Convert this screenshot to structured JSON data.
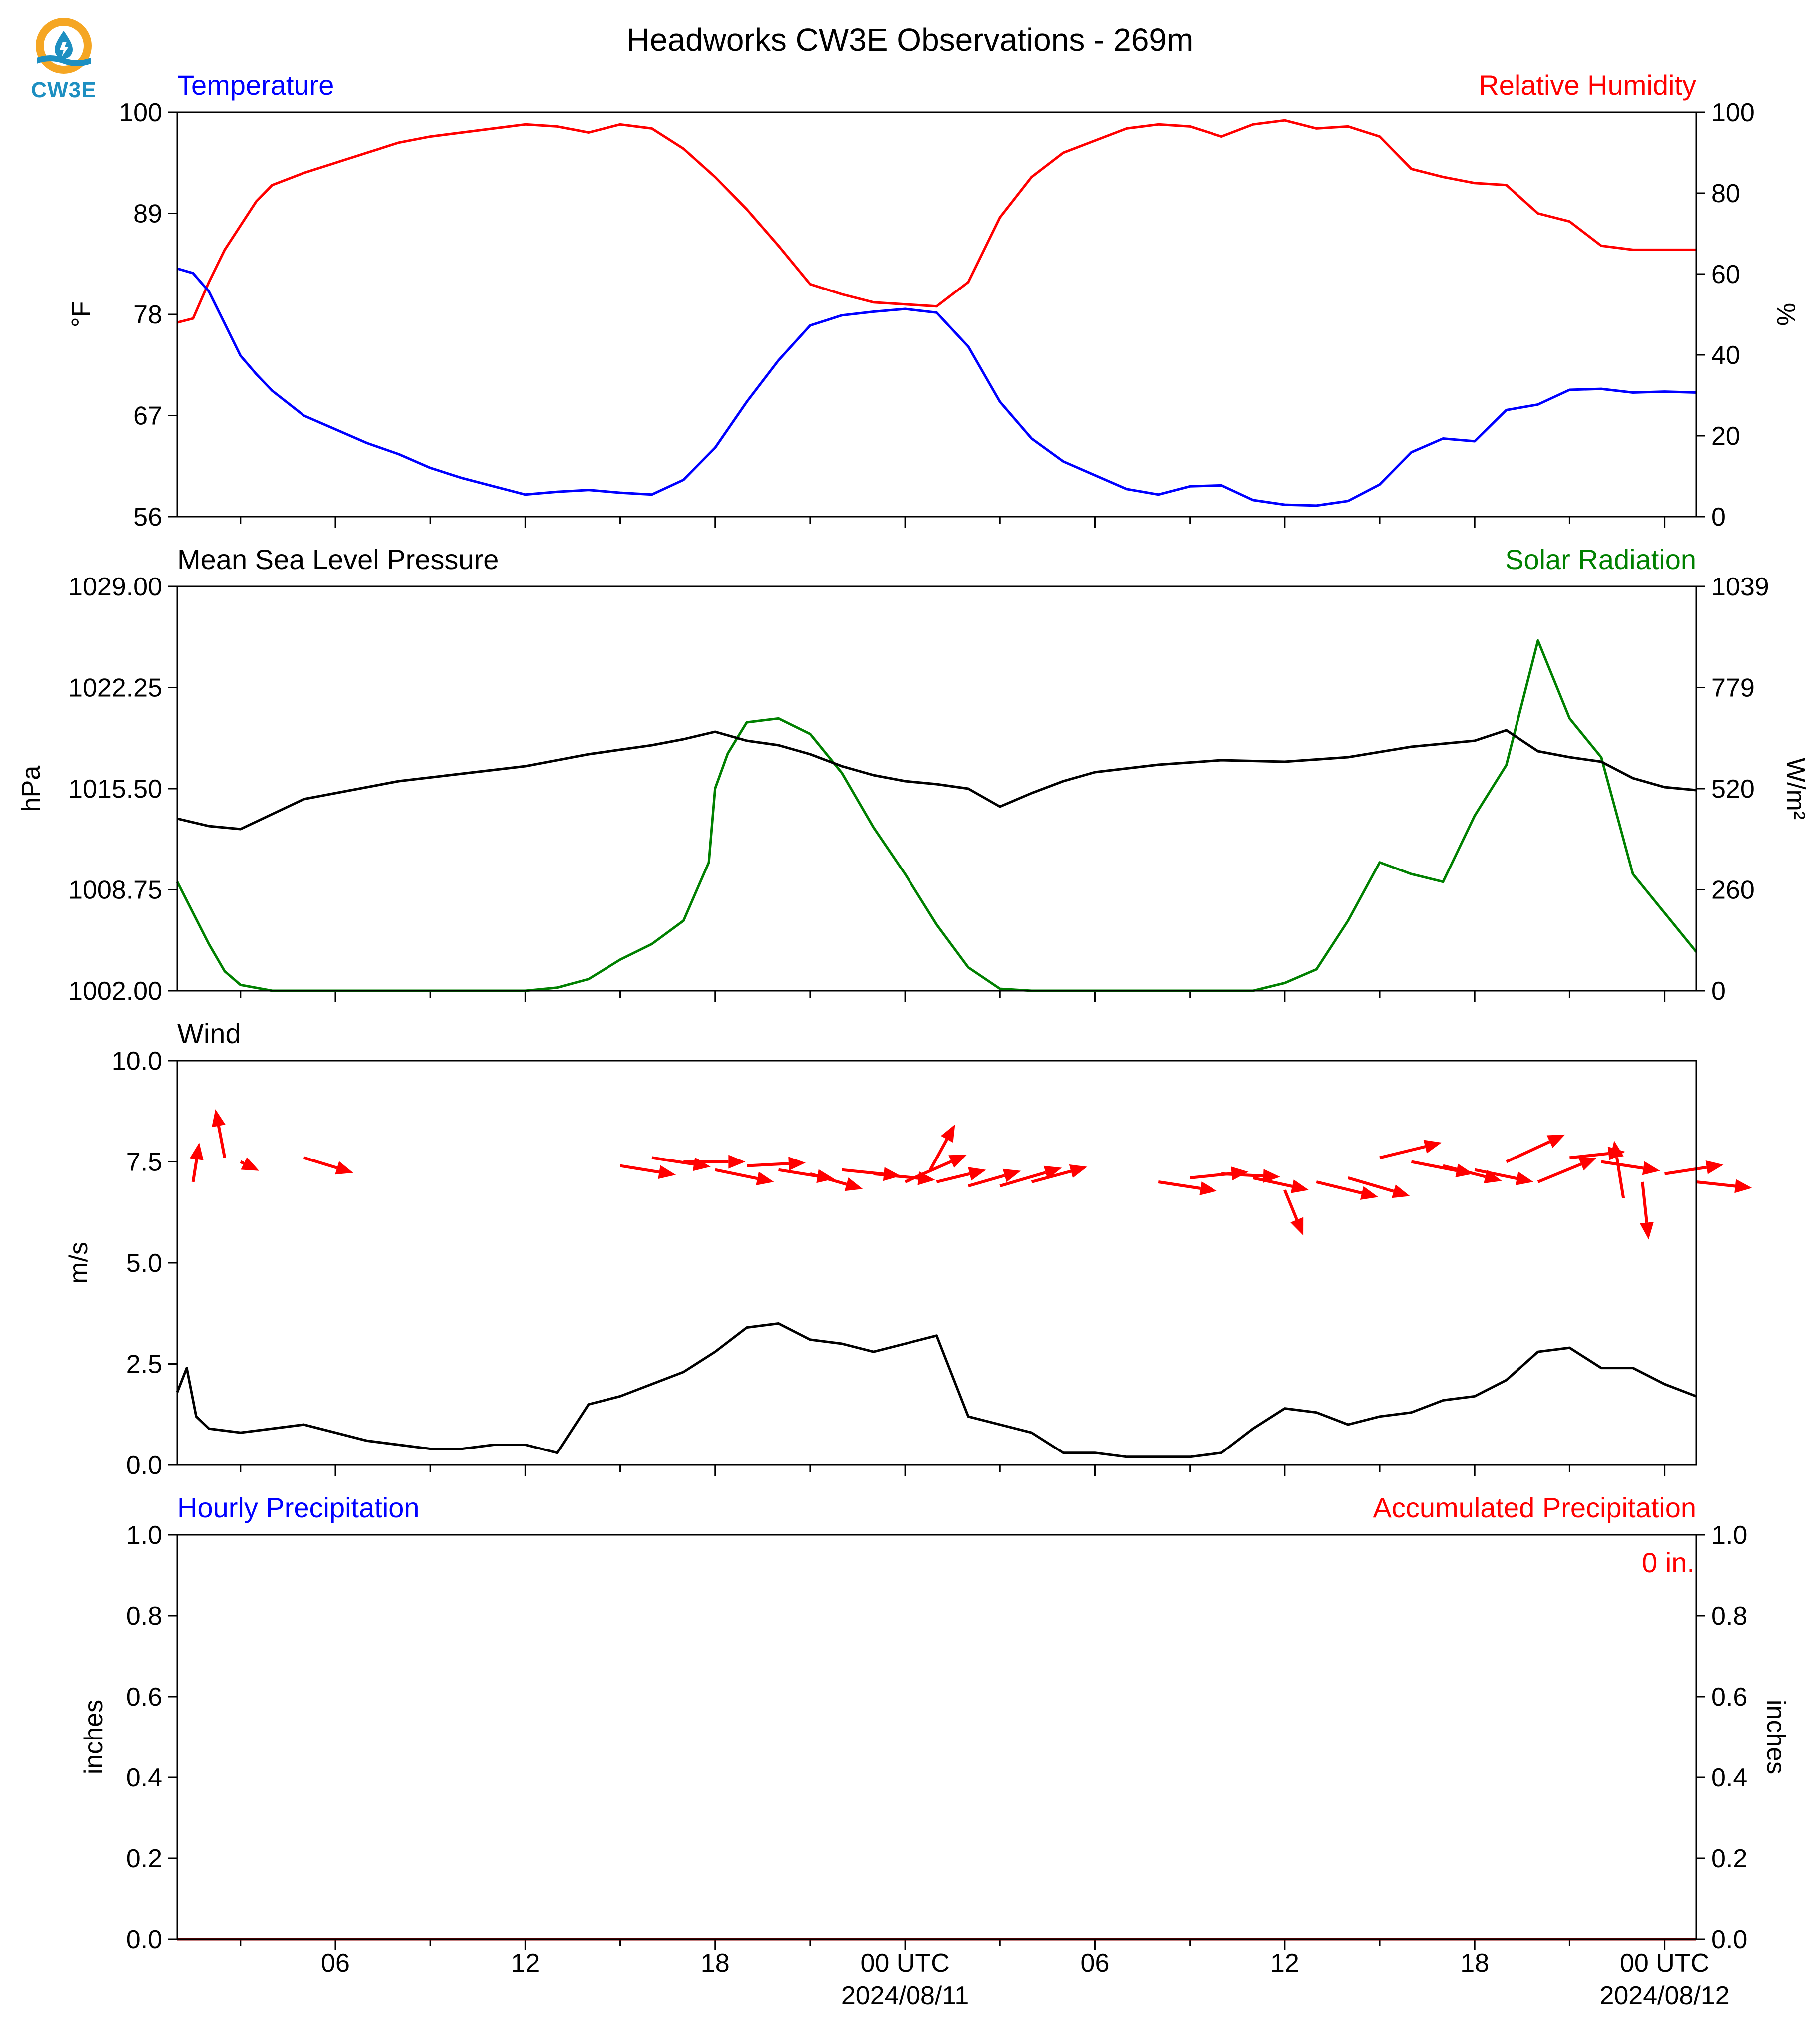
{
  "title": "Headworks CW3E Observations - 269m",
  "logo": {
    "text": "CW3E",
    "icon": "cw3e-water-drop-logo",
    "colors": {
      "ring": "#f5a623",
      "drop": "#1d8fc1"
    }
  },
  "x_axis": {
    "start": "2024-08-10 02:00 UTC",
    "end": "2024-08-12 01:00 UTC",
    "tick_labels": [
      {
        "time": "2024-08-10 06:00",
        "label": "06",
        "sub": ""
      },
      {
        "time": "2024-08-10 12:00",
        "label": "12",
        "sub": ""
      },
      {
        "time": "2024-08-10 18:00",
        "label": "18",
        "sub": ""
      },
      {
        "time": "2024-08-11 00:00",
        "label": "00 UTC",
        "sub": "2024/08/11"
      },
      {
        "time": "2024-08-11 06:00",
        "label": "06",
        "sub": ""
      },
      {
        "time": "2024-08-11 12:00",
        "label": "12",
        "sub": ""
      },
      {
        "time": "2024-08-11 18:00",
        "label": "18",
        "sub": ""
      },
      {
        "time": "2024-08-12 00:00",
        "label": "00 UTC",
        "sub": "2024/08/12"
      }
    ]
  },
  "panels": {
    "temp_rh": {
      "left_title": "Temperature",
      "right_title": "Relative Humidity",
      "left_ylabel": "°F",
      "right_ylabel": "%",
      "left_ticks": [
        "56",
        "67",
        "78",
        "89",
        "100"
      ],
      "right_ticks": [
        "0",
        "20",
        "40",
        "60",
        "80",
        "100"
      ]
    },
    "pressure_solar": {
      "left_title": "Mean Sea Level Pressure",
      "right_title": "Solar Radiation",
      "left_ylabel": "hPa",
      "right_ylabel": "W/m²",
      "left_ticks": [
        "1002.00",
        "1008.75",
        "1015.50",
        "1022.25",
        "1029.00"
      ],
      "right_ticks": [
        "0",
        "260",
        "520",
        "779",
        "1039"
      ]
    },
    "wind": {
      "left_title": "Wind",
      "left_ylabel": "m/s",
      "left_ticks": [
        "0.0",
        "2.5",
        "5.0",
        "7.5",
        "10.0"
      ]
    },
    "precip": {
      "left_title": "Hourly Precipitation",
      "right_title": "Accumulated Precipitation",
      "left_ylabel": "inches",
      "right_ylabel": "inches",
      "left_ticks": [
        "0.0",
        "0.2",
        "0.4",
        "0.6",
        "0.8",
        "1.0"
      ],
      "right_ticks": [
        "0.0",
        "0.2",
        "0.4",
        "0.6",
        "0.8",
        "1.0"
      ],
      "total_label": "0 in."
    }
  },
  "chart_data": [
    {
      "type": "line",
      "title": "Temperature / Relative Humidity",
      "x_unit": "hours since 2024-08-10 00:00 UTC",
      "series": [
        {
          "name": "Temperature",
          "unit": "°F",
          "axis": "left",
          "color": "#0000ff",
          "x": [
            1,
            1.5,
            2,
            2.5,
            3,
            3.5,
            4,
            5,
            6,
            7,
            8,
            9,
            10,
            11,
            12,
            13,
            14,
            15,
            16,
            17,
            18,
            19,
            20,
            21,
            22,
            23,
            24,
            25,
            26,
            27,
            28,
            29,
            30,
            31,
            32,
            33,
            34,
            35,
            36,
            37,
            38,
            39,
            40,
            41,
            42,
            43,
            44,
            45,
            46,
            47,
            48,
            49
          ],
          "y": [
            83,
            82.5,
            80.5,
            77,
            73.5,
            71.5,
            69.7,
            67,
            65.5,
            64,
            62.8,
            61.3,
            60.2,
            59.3,
            58.4,
            58.7,
            58.9,
            58.6,
            58.4,
            60,
            63.5,
            68.5,
            73,
            76.8,
            77.9,
            78.3,
            78.6,
            78.2,
            74.5,
            68.5,
            64.5,
            62,
            60.5,
            59,
            58.4,
            59.3,
            59.4,
            57.8,
            57.3,
            57.2,
            57.7,
            59.5,
            63,
            64.5,
            64.2,
            67.6,
            68.2,
            69.8,
            69.9,
            69.5,
            69.6,
            69.5
          ]
        },
        {
          "name": "Relative Humidity",
          "unit": "%",
          "axis": "right",
          "color": "#ff0000",
          "x": [
            1,
            1.5,
            2,
            2.5,
            3,
            3.5,
            4,
            5,
            6,
            7,
            8,
            9,
            10,
            11,
            12,
            13,
            14,
            15,
            16,
            17,
            18,
            19,
            20,
            21,
            22,
            23,
            24,
            25,
            26,
            27,
            28,
            29,
            30,
            31,
            32,
            33,
            34,
            35,
            36,
            37,
            38,
            39,
            40,
            41,
            42,
            43,
            44,
            45,
            46,
            47,
            48,
            49
          ],
          "y": [
            48,
            49,
            58,
            66,
            72,
            78,
            82,
            85,
            87.5,
            90,
            92.5,
            94,
            95,
            96,
            97,
            96.5,
            95,
            97,
            96,
            91,
            84,
            76,
            67,
            57.5,
            55,
            53,
            52.5,
            52,
            58,
            74,
            84,
            90,
            93,
            96,
            97,
            96.5,
            94,
            97,
            98,
            96,
            96.5,
            94,
            86,
            84,
            82.5,
            82,
            75,
            73,
            67,
            66,
            66,
            66
          ]
        }
      ],
      "xlim": [
        1,
        49
      ],
      "ylim_left": [
        56,
        100
      ],
      "ylim_right": [
        0,
        100
      ]
    },
    {
      "type": "line",
      "title": "Mean Sea Level Pressure / Solar Radiation",
      "x_unit": "hours since 2024-08-10 00:00 UTC",
      "series": [
        {
          "name": "Mean Sea Level Pressure",
          "unit": "hPa",
          "axis": "left",
          "color": "#000000",
          "x": [
            1,
            2,
            3,
            4,
            5,
            6,
            8,
            10,
            12,
            14,
            16,
            17,
            18,
            19,
            20,
            21,
            22,
            23,
            24,
            25,
            26,
            27,
            28,
            29,
            30,
            32,
            34,
            36,
            38,
            40,
            42,
            43,
            44,
            45,
            46,
            47,
            48,
            49
          ],
          "y": [
            1013.5,
            1013,
            1012.8,
            1013.8,
            1014.8,
            1015.2,
            1016,
            1016.5,
            1017,
            1017.8,
            1018.4,
            1018.8,
            1019.3,
            1018.7,
            1018.4,
            1017.8,
            1017,
            1016.4,
            1016,
            1015.8,
            1015.5,
            1014.3,
            1015.2,
            1016,
            1016.6,
            1017.1,
            1017.4,
            1017.3,
            1017.6,
            1018.3,
            1018.7,
            1019.4,
            1018,
            1017.6,
            1017.3,
            1016.2,
            1015.6,
            1015.4
          ]
        },
        {
          "name": "Solar Radiation",
          "unit": "W/m²",
          "axis": "right",
          "color": "#008000",
          "x": [
            1,
            1.5,
            2,
            2.5,
            3,
            4,
            5,
            10,
            12,
            13,
            14,
            15,
            16,
            17,
            17.8,
            18,
            18.4,
            19,
            20,
            21,
            22,
            23,
            24,
            25,
            26,
            27,
            28,
            29,
            31,
            34,
            35,
            36,
            37,
            38,
            39,
            40,
            41,
            42,
            43,
            44,
            45,
            46,
            47,
            48,
            49
          ],
          "y": [
            280,
            200,
            120,
            50,
            15,
            0,
            0,
            0,
            0,
            8,
            30,
            80,
            120,
            180,
            330,
            520,
            610,
            690,
            700,
            660,
            560,
            420,
            300,
            170,
            60,
            5,
            0,
            0,
            0,
            0,
            0,
            20,
            55,
            180,
            330,
            300,
            280,
            450,
            580,
            900,
            700,
            600,
            300,
            200,
            100
          ]
        }
      ],
      "xlim": [
        1,
        49
      ],
      "ylim_left": [
        1002,
        1029
      ],
      "ylim_right": [
        0,
        1039
      ]
    },
    {
      "type": "line",
      "title": "Wind",
      "x_unit": "hours since 2024-08-10 00:00 UTC",
      "series": [
        {
          "name": "Wind speed",
          "unit": "m/s",
          "color": "#000000",
          "x": [
            1,
            1.3,
            1.6,
            2,
            3,
            4,
            5,
            6,
            7,
            8,
            9,
            10,
            11,
            12,
            13,
            14,
            15,
            16,
            17,
            18,
            19,
            20,
            21,
            22,
            23,
            24,
            25,
            26,
            27,
            28,
            29,
            30,
            31,
            32,
            33,
            34,
            35,
            36,
            37,
            38,
            39,
            40,
            41,
            42,
            43,
            44,
            45,
            46,
            47,
            48,
            49
          ],
          "y": [
            1.8,
            2.4,
            1.2,
            0.9,
            0.8,
            0.9,
            1.0,
            0.8,
            0.6,
            0.5,
            0.4,
            0.4,
            0.5,
            0.5,
            0.3,
            1.5,
            1.7,
            2.0,
            2.3,
            2.8,
            3.4,
            3.5,
            3.1,
            3.0,
            2.8,
            3.0,
            3.2,
            1.2,
            1.0,
            0.8,
            0.3,
            0.3,
            0.2,
            0.2,
            0.2,
            0.3,
            0.9,
            1.4,
            1.3,
            1.0,
            1.2,
            1.3,
            1.6,
            1.7,
            2.1,
            2.8,
            2.9,
            2.4,
            2.4,
            2.0,
            1.7
          ]
        },
        {
          "name": "Wind direction",
          "color": "#ff0000",
          "type": "vectors",
          "points": [
            {
              "x": 1.5,
              "y": 7.0,
              "dx": 0.2,
              "dy": 1.3
            },
            {
              "x": 2.5,
              "y": 7.6,
              "dx": -0.3,
              "dy": 1.6
            },
            {
              "x": 3.0,
              "y": 7.5,
              "dx": 0.6,
              "dy": -0.3
            },
            {
              "x": 5.0,
              "y": 7.6,
              "dx": 1.6,
              "dy": -0.5
            },
            {
              "x": 15.0,
              "y": 7.4,
              "dx": 1.8,
              "dy": -0.3
            },
            {
              "x": 16.0,
              "y": 7.6,
              "dx": 1.9,
              "dy": -0.3
            },
            {
              "x": 17.0,
              "y": 7.5,
              "dx": 2.0,
              "dy": 0.0
            },
            {
              "x": 18.0,
              "y": 7.3,
              "dx": 1.9,
              "dy": -0.4
            },
            {
              "x": 19.0,
              "y": 7.4,
              "dx": 1.9,
              "dy": 0.1
            },
            {
              "x": 20.0,
              "y": 7.3,
              "dx": 1.8,
              "dy": -0.3
            },
            {
              "x": 21.0,
              "y": 7.2,
              "dx": 1.7,
              "dy": -0.5
            },
            {
              "x": 22.0,
              "y": 7.3,
              "dx": 1.9,
              "dy": -0.2
            },
            {
              "x": 23.0,
              "y": 7.2,
              "dx": 2.0,
              "dy": -0.2
            },
            {
              "x": 24.0,
              "y": 7.0,
              "dx": 2.0,
              "dy": 0.9
            },
            {
              "x": 24.8,
              "y": 7.3,
              "dx": 0.8,
              "dy": 1.5
            },
            {
              "x": 25.0,
              "y": 7.0,
              "dx": 1.6,
              "dy": 0.4
            },
            {
              "x": 26.0,
              "y": 6.9,
              "dx": 1.7,
              "dy": 0.5
            },
            {
              "x": 27.0,
              "y": 6.9,
              "dx": 2.0,
              "dy": 0.6
            },
            {
              "x": 28.0,
              "y": 7.0,
              "dx": 1.8,
              "dy": 0.5
            },
            {
              "x": 32.0,
              "y": 7.0,
              "dx": 1.9,
              "dy": -0.3
            },
            {
              "x": 33.0,
              "y": 7.1,
              "dx": 1.9,
              "dy": 0.2
            },
            {
              "x": 34.0,
              "y": 7.2,
              "dx": 1.9,
              "dy": -0.1
            },
            {
              "x": 35.0,
              "y": 7.1,
              "dx": 1.8,
              "dy": -0.4
            },
            {
              "x": 36.0,
              "y": 6.8,
              "dx": 0.6,
              "dy": -1.5
            },
            {
              "x": 37.0,
              "y": 7.0,
              "dx": 2.0,
              "dy": -0.5
            },
            {
              "x": 38.0,
              "y": 7.1,
              "dx": 2.0,
              "dy": -0.6
            },
            {
              "x": 39.0,
              "y": 7.6,
              "dx": 2.0,
              "dy": 0.5
            },
            {
              "x": 40.0,
              "y": 7.5,
              "dx": 2.0,
              "dy": -0.4
            },
            {
              "x": 41.0,
              "y": 7.4,
              "dx": 1.9,
              "dy": -0.5
            },
            {
              "x": 42.0,
              "y": 7.3,
              "dx": 1.9,
              "dy": -0.4
            },
            {
              "x": 43.0,
              "y": 7.5,
              "dx": 1.9,
              "dy": 0.9
            },
            {
              "x": 44.0,
              "y": 7.0,
              "dx": 1.9,
              "dy": 0.8
            },
            {
              "x": 45.0,
              "y": 7.6,
              "dx": 1.8,
              "dy": 0.2
            },
            {
              "x": 46.0,
              "y": 7.5,
              "dx": 1.9,
              "dy": -0.3
            },
            {
              "x": 46.7,
              "y": 6.6,
              "dx": -0.3,
              "dy": 1.9
            },
            {
              "x": 47.3,
              "y": 7.0,
              "dx": 0.2,
              "dy": -1.9
            },
            {
              "x": 48.0,
              "y": 7.2,
              "dx": 1.9,
              "dy": 0.3
            },
            {
              "x": 49.0,
              "y": 7.0,
              "dx": 1.8,
              "dy": -0.2
            }
          ]
        }
      ],
      "xlim": [
        1,
        49
      ],
      "ylim": [
        0,
        10
      ]
    },
    {
      "type": "line",
      "title": "Hourly Precipitation / Accumulated Precipitation",
      "x_unit": "hours since 2024-08-10 00:00 UTC",
      "series": [
        {
          "name": "Hourly Precipitation",
          "unit": "inches",
          "axis": "left",
          "color": "#0000ff",
          "x": [
            1,
            49
          ],
          "y": [
            0,
            0
          ]
        },
        {
          "name": "Accumulated Precipitation",
          "unit": "inches",
          "axis": "right",
          "color": "#8b0000",
          "x": [
            1,
            49
          ],
          "y": [
            0,
            0
          ]
        }
      ],
      "xlim": [
        1,
        49
      ],
      "ylim_left": [
        0,
        1
      ],
      "ylim_right": [
        0,
        1
      ]
    }
  ]
}
